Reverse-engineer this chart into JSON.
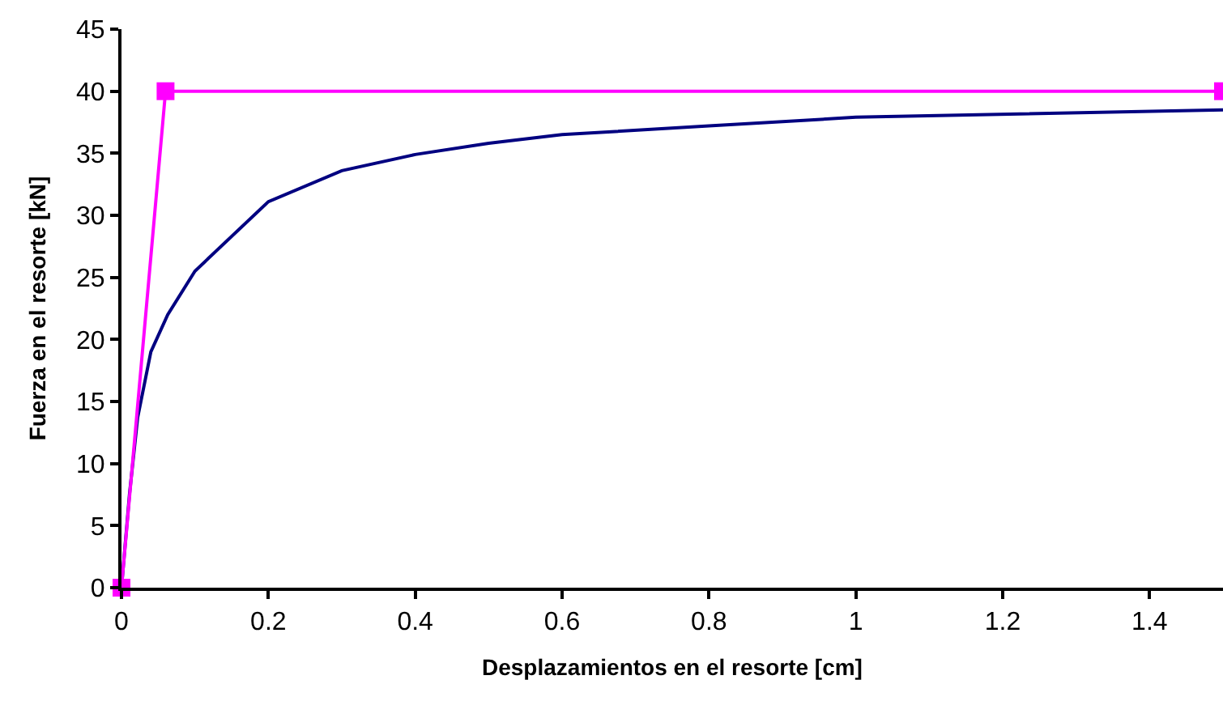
{
  "chart_data": {
    "type": "line",
    "xlabel": "Desplazamientos en el resorte [cm]",
    "ylabel": "Fuerza en el resorte [kN]",
    "series": [
      {
        "color": "#000080",
        "marker": "none",
        "x": [
          0,
          0.011,
          0.022,
          0.04,
          0.063,
          0.1,
          0.2,
          0.3,
          0.4,
          0.5,
          0.6,
          0.8,
          1.0,
          1.5
        ],
        "values": [
          0,
          7.6,
          13.7,
          19,
          22,
          25.5,
          31.1,
          33.6,
          34.9,
          35.8,
          36.5,
          37.2,
          37.9,
          38.5
        ]
      },
      {
        "color": "#ff00ff",
        "marker": "square",
        "x": [
          0,
          0.06,
          1.5
        ],
        "values": [
          0,
          40,
          40
        ]
      }
    ],
    "xlim": [
      0,
      1.5
    ],
    "xticks": [
      0,
      0.2,
      0.4,
      0.6,
      0.8,
      1,
      1.2,
      1.4
    ],
    "ylim": [
      0,
      45
    ],
    "yticks": [
      0,
      5,
      10,
      15,
      20,
      25,
      30,
      35,
      40,
      45
    ],
    "legend": false
  }
}
